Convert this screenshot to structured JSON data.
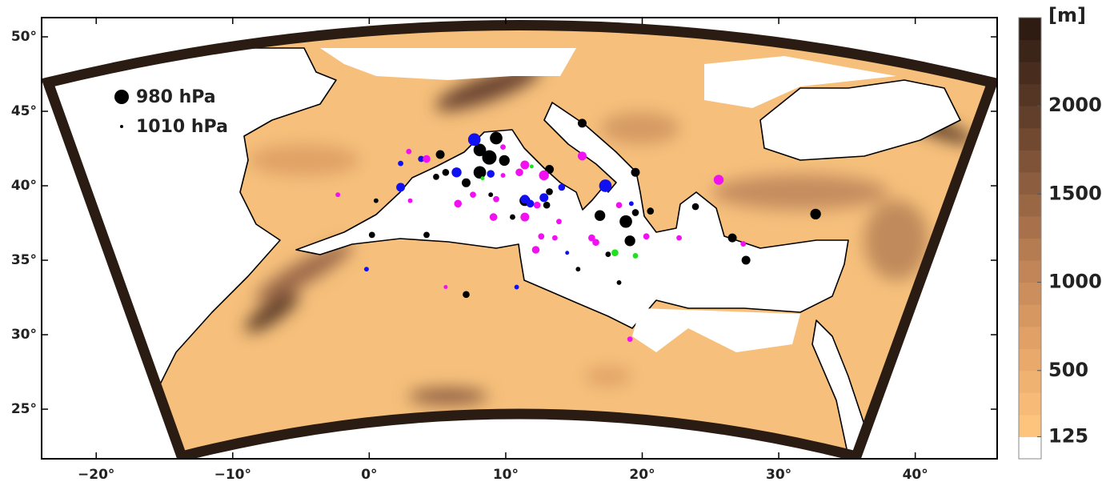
{
  "chart_data": {
    "type": "scatter",
    "xlim": [
      -24,
      46
    ],
    "ylim": [
      21.67,
      51.29
    ],
    "xticks": [
      {
        "value": -20,
        "label": "−20°"
      },
      {
        "value": -10,
        "label": "−10°"
      },
      {
        "value": 0,
        "label": "0°"
      },
      {
        "value": 10,
        "label": "10°"
      },
      {
        "value": 20,
        "label": "20°"
      },
      {
        "value": 30,
        "label": "30°"
      },
      {
        "value": 40,
        "label": "40°"
      }
    ],
    "yticks": [
      {
        "value": 25,
        "label": "25°"
      },
      {
        "value": 30,
        "label": "30°"
      },
      {
        "value": 35,
        "label": "35°"
      },
      {
        "value": 40,
        "label": "40°"
      },
      {
        "value": 45,
        "label": "45°"
      },
      {
        "value": 50,
        "label": "50°"
      }
    ],
    "size_legend": [
      {
        "value": 980,
        "label": "980 hPa"
      },
      {
        "value": 1010,
        "label": "1010 hPa"
      }
    ],
    "colorbar": {
      "label": "[m]",
      "lim": [
        0,
        2500
      ],
      "ticks": [
        125,
        500,
        1000,
        1500,
        2000
      ],
      "colors": [
        "#ffffff",
        "#fdc47e",
        "#f7bb77",
        "#f0b271",
        "#e9a96b",
        "#e0a066",
        "#d69761",
        "#cc8e5c",
        "#c18557",
        "#b57b51",
        "#a8714b",
        "#9a6745",
        "#8c5d3e",
        "#7e5337",
        "#704930",
        "#623f2a",
        "#553624",
        "#482d1e",
        "#3b2418",
        "#2e1c13"
      ]
    },
    "series": [
      {
        "color": "#000000",
        "x": [
          9.3,
          8.1,
          8.8,
          8.1,
          9.9,
          7.1,
          5.2,
          5.6,
          4.9,
          11.4,
          13.2,
          13.2,
          13,
          15.6,
          19.5,
          16.9,
          18.8,
          19.1,
          19.5,
          20.6,
          26.6,
          27.6,
          32.7,
          23.9,
          0.2,
          4.2,
          7.1,
          17.5,
          15.3,
          18.3,
          10.5,
          0.5,
          8.9
        ],
        "y": [
          43.2,
          42.4,
          41.9,
          40.9,
          41.7,
          40.2,
          42.1,
          40.9,
          40.6,
          39,
          39.6,
          41.1,
          38.7,
          44.2,
          40.9,
          38,
          37.6,
          36.3,
          38.2,
          38.3,
          36.5,
          35,
          38.1,
          38.6,
          36.7,
          36.7,
          32.7,
          35.4,
          34.4,
          33.5,
          37.9,
          39,
          39.4
        ],
        "size": [
          985,
          985,
          980,
          985,
          990,
          995,
          995,
          1000,
          1002,
          990,
          1000,
          995,
          1000,
          995,
          995,
          990,
          985,
          990,
          1000,
          1000,
          995,
          995,
          990,
          1000,
          1002,
          1002,
          1000,
          1004,
          1006,
          1006,
          1004,
          1006,
          1006
        ]
      },
      {
        "color": "#1010f0",
        "x": [
          7.7,
          6.4,
          2.3,
          3.8,
          2.3,
          12.8,
          11.4,
          14.1,
          17.3,
          8.9,
          11.8,
          19.2,
          -0.2,
          10.8,
          14.5
        ],
        "y": [
          43.1,
          40.9,
          39.9,
          41.8,
          41.5,
          39.2,
          39.1,
          39.9,
          40,
          40.8,
          38.8,
          38.8,
          34.4,
          33.2,
          35.5
        ],
        "size": [
          985,
          992,
          995,
          1002,
          1004,
          995,
          995,
          1000,
          985,
          998,
          998,
          1006,
          1006,
          1006,
          1008
        ]
      },
      {
        "color": "#f010f0",
        "x": [
          4.2,
          2.9,
          9.8,
          6.5,
          9.1,
          11.4,
          12.3,
          12.2,
          12.6,
          13.6,
          13.9,
          12.8,
          11.4,
          11,
          15.6,
          16.3,
          16.6,
          18.3,
          20.3,
          22.7,
          25.6,
          27.4,
          19.1,
          -2.3,
          3,
          5.6,
          9.8,
          7.6,
          9.3
        ],
        "y": [
          41.8,
          42.3,
          42.6,
          38.8,
          37.9,
          37.9,
          38.7,
          35.7,
          36.6,
          36.5,
          37.6,
          40.7,
          41.4,
          40.9,
          42,
          36.5,
          36.2,
          38.7,
          36.6,
          36.5,
          40.4,
          36.1,
          29.7,
          39.4,
          39,
          33.2,
          40.7,
          39.4,
          39.1
        ],
        "size": [
          998,
          1004,
          1004,
          998,
          998,
          995,
          1000,
          998,
          1002,
          1004,
          1004,
          992,
          995,
          998,
          995,
          1000,
          1000,
          1002,
          1002,
          1004,
          992,
          1004,
          1004,
          1006,
          1006,
          1008,
          1006,
          1002,
          1002
        ]
      },
      {
        "color": "#20e020",
        "x": [
          18,
          19.5,
          11.9,
          8.3
        ],
        "y": [
          35.5,
          35.3,
          41.3,
          40.5
        ],
        "size": [
          1000,
          1004,
          1008,
          1008
        ]
      }
    ]
  }
}
